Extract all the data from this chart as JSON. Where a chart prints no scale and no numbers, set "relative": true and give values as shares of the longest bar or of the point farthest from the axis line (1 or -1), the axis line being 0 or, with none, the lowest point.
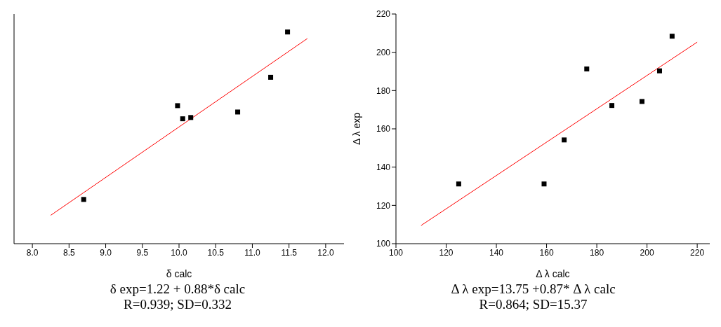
{
  "chart_data": [
    {
      "type": "scatter",
      "xlabel": "δ calc",
      "relative": true,
      "marker": "square",
      "grid": false,
      "legend": false,
      "tick_labels": "x",
      "xlim": [
        7.75,
        12.25
      ],
      "xticks": [
        {
          "value": 8,
          "label": "8.0"
        },
        {
          "value": 8.5,
          "label": "8.5"
        },
        {
          "value": 9,
          "label": "9.0"
        },
        {
          "value": 9.5,
          "label": "9.5"
        },
        {
          "value": 10,
          "label": "10.0"
        },
        {
          "value": 10.5,
          "label": "10.5"
        },
        {
          "value": 11,
          "label": "11.0"
        },
        {
          "value": 11.5,
          "label": "11.5"
        },
        {
          "value": 12,
          "label": "12.0"
        }
      ],
      "series": [
        {
          "type": "scatter",
          "color": "#000000",
          "x": [
            8.7,
            9.98,
            10.05,
            10.16,
            10.8,
            11.25,
            11.48
          ],
          "values": [
            0.209,
            0.652,
            0.59,
            0.596,
            0.622,
            0.786,
            1
          ]
        },
        {
          "type": "line",
          "color": "#ff0000",
          "marker": "none",
          "x": [
            8.25,
            11.75
          ],
          "values": [
            0.134,
            0.969
          ]
        }
      ],
      "annotations": [
        "δ exp=1.22 + 0.88*δ calc",
        "R=0.939; SD=0.332"
      ]
    },
    {
      "type": "scatter",
      "xlabel": "Δ λ calc",
      "ylabel": "Δ λ exp",
      "marker": "square",
      "grid": false,
      "legend": false,
      "xlim": [
        100,
        225
      ],
      "xticks": [
        100,
        120,
        140,
        160,
        180,
        200,
        220
      ],
      "ylim": [
        100,
        220
      ],
      "yticks": [
        100,
        120,
        140,
        160,
        180,
        200,
        220
      ],
      "series": [
        {
          "type": "scatter",
          "color": "#000000",
          "x": [
            125,
            159,
            167,
            176,
            186,
            198,
            205,
            210
          ],
          "values": [
            131.2,
            131.2,
            154.2,
            191.3,
            172.2,
            174.3,
            190.3,
            208.4
          ]
        },
        {
          "type": "line",
          "color": "#ff0000",
          "marker": "none",
          "x": [
            110,
            220
          ],
          "values": [
            109.5,
            205.3
          ]
        }
      ],
      "annotations": [
        "Δ λ exp=13.75 +0.87* Δ λ calc",
        "R=0.864; SD=15.37"
      ]
    }
  ]
}
